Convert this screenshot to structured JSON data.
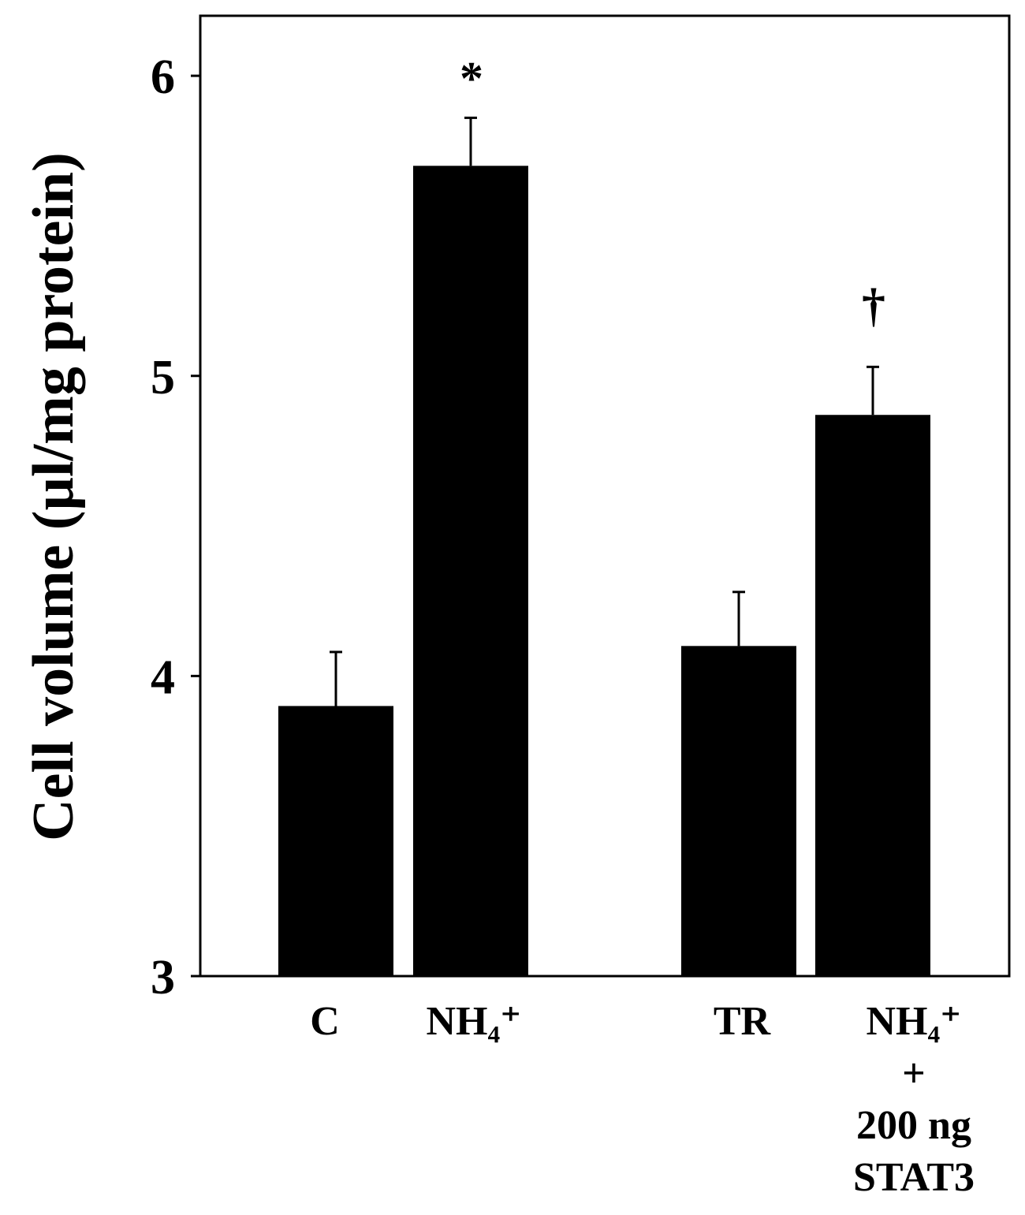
{
  "chart_data": {
    "type": "bar",
    "ylabel": "Cell volume (µl/mg protein)",
    "ylim": [
      3,
      6.2
    ],
    "yticks": [
      3,
      4,
      5,
      6
    ],
    "grid": false,
    "bar_color": "#000000",
    "categories": [
      {
        "lines": [
          "C"
        ]
      },
      {
        "lines": [
          "NH₄⁺"
        ]
      },
      {
        "lines": [
          "TR"
        ]
      },
      {
        "lines": [
          "NH₄⁺",
          "+",
          "200 ng",
          "STAT3"
        ]
      }
    ],
    "values": [
      3.9,
      5.7,
      4.1,
      4.87
    ],
    "errors": [
      0.18,
      0.16,
      0.18,
      0.16
    ],
    "annotations": [
      "",
      "*",
      "",
      "†"
    ]
  }
}
